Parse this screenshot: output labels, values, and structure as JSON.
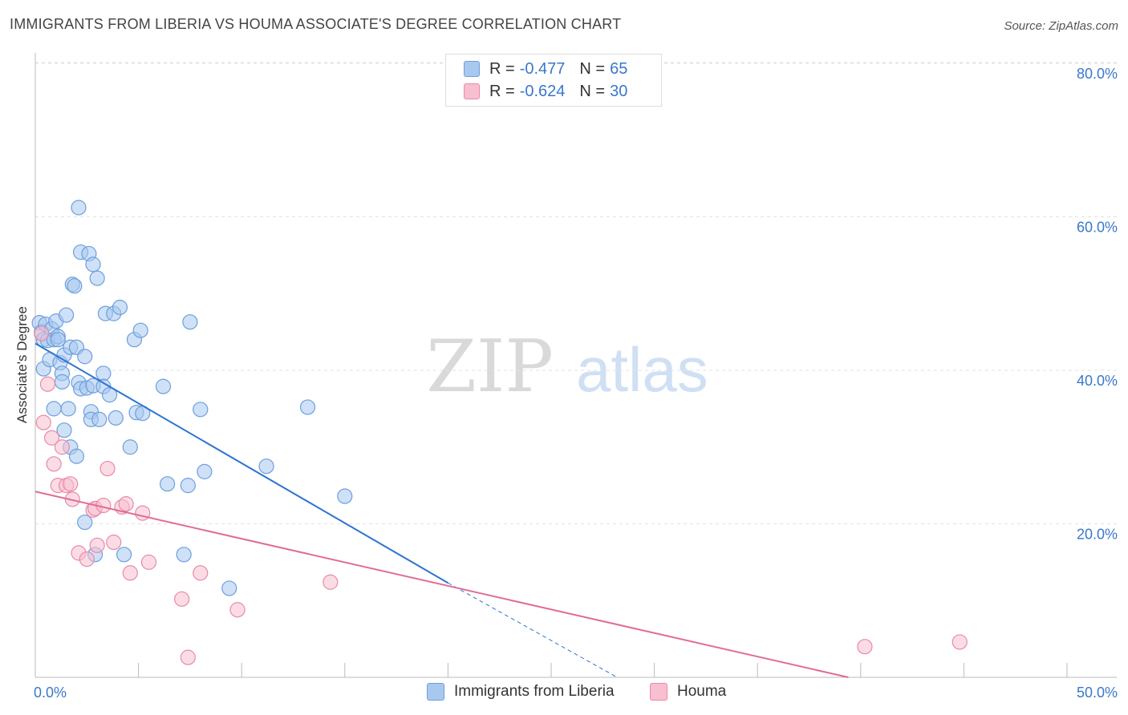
{
  "title": "IMMIGRANTS FROM LIBERIA VS HOUMA ASSOCIATE'S DEGREE CORRELATION CHART",
  "source": "Source: ZipAtlas.com",
  "watermark": {
    "zip": "ZIP",
    "atlas": "atlas"
  },
  "legend_top": [
    {
      "r_label": "R =",
      "r_value": "-0.477",
      "n_label": "N =",
      "n_value": "65",
      "color": "#a8c8f0",
      "border": "#6d9fdc"
    },
    {
      "r_label": "R =",
      "r_value": "-0.624",
      "n_label": "N =",
      "n_value": "30",
      "color": "#f8bfd0",
      "border": "#e88aa6"
    }
  ],
  "legend_bottom": [
    "Immigrants from Liberia",
    "Houma"
  ],
  "chart_data": {
    "type": "scatter",
    "xlabel": "",
    "ylabel": "Associate's Degree",
    "xlim": [
      0,
      50
    ],
    "ylim": [
      0,
      80
    ],
    "x_tick_labels": [
      "0.0%",
      "50.0%"
    ],
    "y_tick_values": [
      20,
      40,
      60,
      80
    ],
    "y_tick_labels": [
      "20.0%",
      "40.0%",
      "60.0%",
      "80.0%"
    ],
    "grid": "horizontal dashed",
    "legend": "top-center and bottom",
    "colors": {
      "liberia": "#6d9fdc",
      "liberia_fill": "#a8c8f0",
      "liberia_line": "#2f74d0",
      "houma": "#e88aa6",
      "houma_fill": "#f8bfd0",
      "houma_line": "#e06c94"
    },
    "series": [
      {
        "name": "Immigrants from Liberia",
        "points": [
          [
            0.2,
            46.2
          ],
          [
            0.3,
            45.0
          ],
          [
            0.4,
            44.0
          ],
          [
            0.4,
            40.2
          ],
          [
            0.5,
            46.0
          ],
          [
            0.6,
            43.9
          ],
          [
            0.7,
            41.4
          ],
          [
            0.8,
            45.4
          ],
          [
            0.9,
            44.0
          ],
          [
            0.9,
            35.0
          ],
          [
            1.0,
            46.4
          ],
          [
            1.1,
            44.4
          ],
          [
            1.1,
            44.0
          ],
          [
            1.2,
            41.0
          ],
          [
            1.3,
            39.6
          ],
          [
            1.3,
            38.5
          ],
          [
            1.4,
            42.0
          ],
          [
            1.4,
            32.2
          ],
          [
            1.5,
            47.2
          ],
          [
            1.6,
            35.0
          ],
          [
            1.7,
            30.0
          ],
          [
            1.7,
            43.0
          ],
          [
            1.8,
            51.2
          ],
          [
            1.9,
            51.0
          ],
          [
            2.0,
            43.0
          ],
          [
            2.0,
            28.8
          ],
          [
            2.1,
            38.4
          ],
          [
            2.1,
            61.2
          ],
          [
            2.2,
            37.6
          ],
          [
            2.2,
            55.4
          ],
          [
            2.4,
            41.8
          ],
          [
            2.4,
            20.2
          ],
          [
            2.5,
            37.7
          ],
          [
            2.6,
            55.2
          ],
          [
            2.7,
            34.6
          ],
          [
            2.7,
            33.6
          ],
          [
            2.8,
            53.8
          ],
          [
            2.8,
            38.0
          ],
          [
            2.9,
            16.0
          ],
          [
            3.0,
            52.0
          ],
          [
            3.1,
            33.6
          ],
          [
            3.3,
            39.6
          ],
          [
            3.3,
            37.9
          ],
          [
            3.4,
            47.4
          ],
          [
            3.6,
            36.8
          ],
          [
            3.8,
            47.4
          ],
          [
            3.9,
            33.8
          ],
          [
            4.1,
            48.2
          ],
          [
            4.3,
            16.0
          ],
          [
            4.6,
            30.0
          ],
          [
            4.8,
            44.0
          ],
          [
            4.9,
            34.5
          ],
          [
            5.1,
            45.2
          ],
          [
            5.2,
            34.4
          ],
          [
            6.2,
            37.9
          ],
          [
            6.4,
            25.2
          ],
          [
            7.2,
            16.0
          ],
          [
            7.4,
            25.0
          ],
          [
            7.5,
            46.3
          ],
          [
            8.0,
            34.9
          ],
          [
            8.2,
            26.8
          ],
          [
            9.4,
            11.6
          ],
          [
            11.2,
            27.5
          ],
          [
            13.2,
            35.2
          ],
          [
            15.0,
            23.6
          ]
        ]
      },
      {
        "name": "Houma",
        "points": [
          [
            0.3,
            44.8
          ],
          [
            0.4,
            33.2
          ],
          [
            0.6,
            38.2
          ],
          [
            0.8,
            31.2
          ],
          [
            0.9,
            27.8
          ],
          [
            1.1,
            25.0
          ],
          [
            1.3,
            30.0
          ],
          [
            1.5,
            25.0
          ],
          [
            1.7,
            25.2
          ],
          [
            1.8,
            23.2
          ],
          [
            2.1,
            16.2
          ],
          [
            2.5,
            15.4
          ],
          [
            2.8,
            21.8
          ],
          [
            2.9,
            22.0
          ],
          [
            3.0,
            17.2
          ],
          [
            3.3,
            22.4
          ],
          [
            3.5,
            27.2
          ],
          [
            3.8,
            17.6
          ],
          [
            4.2,
            22.2
          ],
          [
            4.4,
            22.6
          ],
          [
            4.6,
            13.6
          ],
          [
            5.2,
            21.4
          ],
          [
            5.5,
            15.0
          ],
          [
            7.1,
            10.2
          ],
          [
            7.4,
            2.6
          ],
          [
            8.0,
            13.6
          ],
          [
            9.8,
            8.8
          ],
          [
            14.3,
            12.4
          ],
          [
            40.2,
            4.0
          ],
          [
            44.8,
            4.6
          ]
        ]
      }
    ],
    "trendlines": [
      {
        "series": "Immigrants from Liberia",
        "x": [
          0,
          20.0
        ],
        "y": [
          43.5,
          12.3
        ],
        "dashed_extension_to": [
          28.2,
          0
        ]
      },
      {
        "series": "Houma",
        "x": [
          0,
          39.4
        ],
        "y": [
          24.2,
          0
        ]
      }
    ]
  }
}
